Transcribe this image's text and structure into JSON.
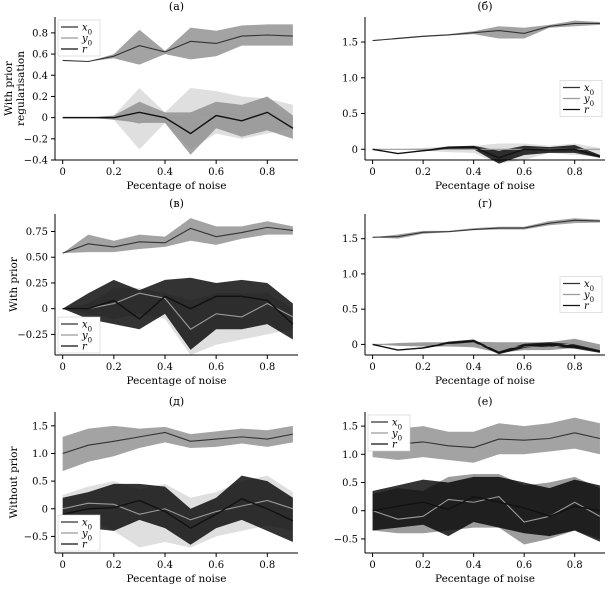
{
  "chart_data": [
    {
      "type": "line",
      "panel_label": "(a)",
      "xlabel": "Pecentage of noise",
      "ylabel": "With prior regularisation",
      "xlim": [
        -0.03,
        0.92
      ],
      "ylim": [
        -0.4,
        0.95
      ],
      "xticks": [
        "0",
        "0.2",
        "0.4",
        "0.6",
        "0.8"
      ],
      "yticks": [
        "−0.4",
        "−0.2",
        "0",
        "0.2",
        "0.4",
        "0.6",
        "0.8"
      ],
      "legend": "top-left",
      "x": [
        0,
        0.1,
        0.2,
        0.3,
        0.4,
        0.5,
        0.6,
        0.7,
        0.8,
        0.9
      ],
      "series": [
        {
          "name": "x0",
          "color": "#8c8c8c",
          "values": [
            0.54,
            0.53,
            0.58,
            0.68,
            0.62,
            0.72,
            0.7,
            0.77,
            0.78,
            0.77
          ],
          "lower": [
            0.54,
            0.53,
            0.56,
            0.5,
            0.6,
            0.55,
            0.58,
            0.68,
            0.68,
            0.68
          ],
          "upper": [
            0.54,
            0.53,
            0.6,
            0.83,
            0.63,
            0.85,
            0.82,
            0.87,
            0.88,
            0.88
          ]
        },
        {
          "name": "y0",
          "color": "#d9d9d9",
          "values": [
            0.0,
            0.0,
            0.0,
            -0.05,
            0.0,
            0.0,
            0.05,
            0.02,
            0.02,
            -0.02
          ],
          "lower": [
            0.0,
            0.0,
            -0.02,
            -0.3,
            -0.05,
            -0.3,
            -0.15,
            -0.2,
            -0.15,
            -0.1
          ],
          "upper": [
            0.0,
            0.0,
            0.02,
            0.28,
            0.05,
            0.28,
            0.25,
            0.2,
            0.18,
            0.12
          ]
        },
        {
          "name": "r",
          "color": "#8c8c8c",
          "values": [
            0.0,
            0.0,
            0.0,
            0.05,
            0.0,
            -0.15,
            0.02,
            -0.03,
            0.05,
            -0.1
          ],
          "lower": [
            0.0,
            0.0,
            -0.02,
            -0.05,
            -0.05,
            -0.35,
            -0.1,
            -0.18,
            -0.12,
            -0.2
          ],
          "upper": [
            0.0,
            0.0,
            0.02,
            0.15,
            0.05,
            0.05,
            0.15,
            0.12,
            0.2,
            0.02
          ]
        }
      ]
    },
    {
      "type": "line",
      "panel_label": "(б)",
      "xlabel": "Pecentage of noise",
      "ylabel": "",
      "xlim": [
        -0.03,
        0.92
      ],
      "ylim": [
        -0.15,
        1.85
      ],
      "xticks": [
        "0",
        "0.2",
        "0.4",
        "0.6",
        "0.8"
      ],
      "yticks": [
        "0",
        "0.5",
        "1.0",
        "1.5"
      ],
      "legend": "center-right",
      "x": [
        0,
        0.1,
        0.2,
        0.3,
        0.4,
        0.5,
        0.6,
        0.7,
        0.8,
        0.9
      ],
      "series": [
        {
          "name": "x0",
          "color": "#8c8c8c",
          "values": [
            1.52,
            1.55,
            1.58,
            1.6,
            1.63,
            1.66,
            1.62,
            1.72,
            1.76,
            1.76
          ],
          "lower": [
            1.52,
            1.54,
            1.57,
            1.59,
            1.61,
            1.55,
            1.55,
            1.7,
            1.72,
            1.74
          ],
          "upper": [
            1.52,
            1.56,
            1.59,
            1.61,
            1.65,
            1.72,
            1.7,
            1.74,
            1.8,
            1.78
          ]
        },
        {
          "name": "y0",
          "color": "#d9d9d9",
          "values": [
            0.0,
            0.0,
            0.0,
            0.0,
            0.0,
            0.0,
            0.0,
            0.0,
            0.0,
            0.0
          ],
          "lower": [
            0.0,
            0.0,
            -0.02,
            -0.04,
            -0.05,
            -0.2,
            -0.15,
            -0.05,
            -0.08,
            -0.1
          ],
          "upper": [
            0.0,
            0.0,
            0.02,
            0.04,
            0.05,
            0.08,
            0.08,
            0.05,
            0.08,
            0.02
          ]
        },
        {
          "name": "r",
          "color": "#000000",
          "values": [
            0.0,
            -0.06,
            -0.02,
            0.02,
            0.03,
            -0.12,
            0.0,
            -0.01,
            0.0,
            -0.1
          ],
          "lower": [
            0.0,
            -0.06,
            -0.03,
            0.0,
            0.0,
            -0.2,
            -0.08,
            -0.05,
            -0.05,
            -0.12
          ],
          "upper": [
            0.0,
            -0.06,
            -0.01,
            0.04,
            0.05,
            -0.02,
            0.05,
            0.03,
            0.06,
            -0.08
          ]
        }
      ]
    },
    {
      "type": "line",
      "panel_label": "(в)",
      "xlabel": "Pecentage of noise",
      "ylabel": "With prior",
      "xlim": [
        -0.03,
        0.92
      ],
      "ylim": [
        -0.45,
        0.92
      ],
      "xticks": [
        "0",
        "0.2",
        "0.4",
        "0.6",
        "0.8"
      ],
      "yticks": [
        "−0.25",
        "0",
        "0.25",
        "0.50",
        "0.75"
      ],
      "legend": "bottom-left",
      "x": [
        0,
        0.1,
        0.2,
        0.3,
        0.4,
        0.5,
        0.6,
        0.7,
        0.8,
        0.9
      ],
      "series": [
        {
          "name": "x0",
          "color": "#8c8c8c",
          "values": [
            0.54,
            0.63,
            0.6,
            0.65,
            0.64,
            0.78,
            0.7,
            0.74,
            0.79,
            0.76
          ],
          "lower": [
            0.54,
            0.55,
            0.55,
            0.58,
            0.6,
            0.66,
            0.62,
            0.68,
            0.72,
            0.72
          ],
          "upper": [
            0.54,
            0.72,
            0.66,
            0.72,
            0.7,
            0.88,
            0.8,
            0.8,
            0.85,
            0.8
          ]
        },
        {
          "name": "y0",
          "color": "#d9d9d9",
          "values": [
            0.0,
            0.0,
            0.05,
            0.15,
            0.1,
            -0.2,
            -0.05,
            -0.08,
            0.05,
            -0.08
          ],
          "lower": [
            0.0,
            -0.05,
            -0.1,
            -0.05,
            -0.1,
            -0.45,
            -0.35,
            -0.3,
            -0.25,
            -0.2
          ],
          "upper": [
            0.0,
            0.05,
            0.2,
            0.2,
            0.15,
            0.08,
            0.15,
            0.15,
            0.15,
            0.0
          ]
        },
        {
          "name": "r",
          "color": "#000000",
          "values": [
            0.0,
            0.0,
            0.08,
            -0.1,
            0.12,
            0.0,
            0.12,
            0.12,
            0.08,
            -0.15
          ],
          "lower": [
            0.0,
            -0.1,
            -0.15,
            -0.2,
            -0.05,
            -0.4,
            -0.2,
            -0.2,
            -0.15,
            -0.3
          ],
          "upper": [
            0.0,
            0.15,
            0.28,
            0.18,
            0.28,
            0.3,
            0.25,
            0.28,
            0.25,
            0.05
          ]
        }
      ]
    },
    {
      "type": "line",
      "panel_label": "(г)",
      "xlabel": "Pecentage of noise",
      "ylabel": "",
      "xlim": [
        -0.03,
        0.92
      ],
      "ylim": [
        -0.15,
        1.85
      ],
      "xticks": [
        "0",
        "0.2",
        "0.4",
        "0.6",
        "0.8"
      ],
      "yticks": [
        "0",
        "0.5",
        "1.0",
        "1.5"
      ],
      "legend": "center-right",
      "x": [
        0,
        0.1,
        0.2,
        0.3,
        0.4,
        0.5,
        0.6,
        0.7,
        0.8,
        0.9
      ],
      "series": [
        {
          "name": "x0",
          "color": "#8c8c8c",
          "values": [
            1.52,
            1.53,
            1.59,
            1.6,
            1.63,
            1.65,
            1.65,
            1.72,
            1.76,
            1.75
          ],
          "lower": [
            1.52,
            1.5,
            1.57,
            1.59,
            1.62,
            1.63,
            1.63,
            1.69,
            1.72,
            1.73
          ],
          "upper": [
            1.52,
            1.56,
            1.61,
            1.61,
            1.65,
            1.67,
            1.67,
            1.75,
            1.79,
            1.77
          ]
        },
        {
          "name": "y0",
          "color": "#8c8c8c",
          "values": [
            0.0,
            0.0,
            0.0,
            0.0,
            0.0,
            -0.05,
            -0.03,
            -0.05,
            0.02,
            -0.05
          ],
          "lower": [
            0.0,
            -0.02,
            -0.03,
            -0.03,
            -0.04,
            -0.12,
            -0.08,
            -0.08,
            -0.05,
            -0.08
          ],
          "upper": [
            0.0,
            0.02,
            0.03,
            0.03,
            0.04,
            0.03,
            0.03,
            0.03,
            0.08,
            0.0
          ]
        },
        {
          "name": "r",
          "color": "#000000",
          "values": [
            0.0,
            -0.08,
            -0.05,
            0.02,
            0.05,
            -0.12,
            -0.02,
            0.0,
            -0.03,
            -0.1
          ],
          "lower": [
            0.0,
            -0.08,
            -0.06,
            0.0,
            0.03,
            -0.14,
            -0.05,
            -0.03,
            -0.06,
            -0.12
          ],
          "upper": [
            0.0,
            -0.08,
            -0.04,
            0.04,
            0.07,
            -0.1,
            0.01,
            0.03,
            0.0,
            -0.08
          ]
        }
      ]
    },
    {
      "type": "line",
      "panel_label": "(д)",
      "xlabel": "Pecentage of noise",
      "ylabel": "Without prior",
      "xlim": [
        -0.03,
        0.92
      ],
      "ylim": [
        -0.8,
        1.75
      ],
      "xticks": [
        "0",
        "0.2",
        "0.4",
        "0.6",
        "0.8"
      ],
      "yticks": [
        "−0.5",
        "0",
        "0.5",
        "1.0",
        "1.5"
      ],
      "legend": "bottom-left",
      "x": [
        0,
        0.1,
        0.2,
        0.3,
        0.4,
        0.5,
        0.6,
        0.7,
        0.8,
        0.9
      ],
      "series": [
        {
          "name": "x0",
          "color": "#8c8c8c",
          "values": [
            1.0,
            1.15,
            1.22,
            1.3,
            1.38,
            1.22,
            1.26,
            1.3,
            1.26,
            1.35
          ],
          "lower": [
            0.68,
            0.85,
            0.95,
            1.1,
            1.2,
            1.1,
            1.12,
            1.18,
            1.12,
            1.2
          ],
          "upper": [
            1.3,
            1.45,
            1.5,
            1.45,
            1.48,
            1.35,
            1.4,
            1.45,
            1.42,
            1.5
          ]
        },
        {
          "name": "y0",
          "color": "#d9d9d9",
          "values": [
            0.0,
            0.1,
            0.08,
            -0.1,
            0.0,
            -0.2,
            -0.05,
            0.05,
            0.15,
            0.0
          ],
          "lower": [
            -0.25,
            -0.2,
            -0.4,
            -0.7,
            -0.6,
            -0.7,
            -0.5,
            -0.4,
            -0.3,
            -0.4
          ],
          "upper": [
            0.25,
            0.4,
            0.5,
            0.35,
            0.45,
            0.2,
            0.3,
            0.5,
            0.6,
            0.3
          ]
        },
        {
          "name": "r",
          "color": "#000000",
          "values": [
            -0.1,
            0.0,
            0.02,
            0.15,
            -0.05,
            -0.35,
            -0.1,
            0.18,
            0.0,
            -0.22
          ],
          "lower": [
            -0.4,
            -0.35,
            -0.4,
            -0.2,
            -0.35,
            -0.65,
            -0.35,
            -0.2,
            -0.4,
            -0.6
          ],
          "upper": [
            0.2,
            0.3,
            0.45,
            0.45,
            0.4,
            0.0,
            0.2,
            0.6,
            0.5,
            0.2
          ]
        }
      ]
    },
    {
      "type": "line",
      "panel_label": "(е)",
      "xlabel": "Pecentage of noise",
      "ylabel": "",
      "xlim": [
        -0.03,
        0.92
      ],
      "ylim": [
        -0.75,
        1.75
      ],
      "xticks": [
        "0",
        "0.2",
        "0.4",
        "0.6",
        "0.8"
      ],
      "yticks": [
        "−0.5",
        "0",
        "0.5",
        "1.0",
        "1.5"
      ],
      "legend": "top-left",
      "x": [
        0,
        0.1,
        0.2,
        0.3,
        0.4,
        0.5,
        0.6,
        0.7,
        0.8,
        0.9
      ],
      "series": [
        {
          "name": "x0",
          "color": "#8c8c8c",
          "values": [
            1.22,
            1.18,
            1.22,
            1.15,
            1.12,
            1.27,
            1.25,
            1.28,
            1.38,
            1.28
          ],
          "lower": [
            0.95,
            0.9,
            0.95,
            0.9,
            0.85,
            1.0,
            1.0,
            1.05,
            1.1,
            1.0
          ],
          "upper": [
            1.5,
            1.45,
            1.5,
            1.4,
            1.4,
            1.55,
            1.5,
            1.55,
            1.65,
            1.55
          ]
        },
        {
          "name": "y0",
          "color": "#8c8c8c",
          "values": [
            0.0,
            -0.15,
            -0.1,
            0.2,
            0.15,
            0.25,
            -0.2,
            -0.1,
            0.15,
            -0.1
          ],
          "lower": [
            -0.35,
            -0.4,
            -0.4,
            -0.35,
            -0.3,
            -0.3,
            -0.6,
            -0.5,
            -0.35,
            -0.5
          ],
          "upper": [
            0.3,
            0.4,
            0.35,
            0.6,
            0.65,
            0.65,
            0.45,
            0.5,
            0.6,
            0.4
          ]
        },
        {
          "name": "r",
          "color": "#000000",
          "values": [
            0.0,
            0.08,
            0.15,
            0.02,
            0.25,
            0.15,
            0.05,
            -0.1,
            0.08,
            0.0
          ],
          "lower": [
            -0.35,
            -0.3,
            -0.25,
            -0.45,
            -0.2,
            -0.3,
            -0.4,
            -0.45,
            -0.35,
            -0.55
          ],
          "upper": [
            0.35,
            0.45,
            0.55,
            0.5,
            0.6,
            0.6,
            0.5,
            0.4,
            0.55,
            0.45
          ]
        }
      ]
    }
  ]
}
